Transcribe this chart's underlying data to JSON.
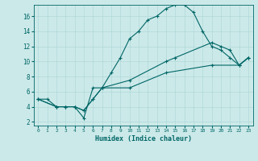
{
  "xlabel": "Humidex (Indice chaleur)",
  "bg_color": "#cce9e9",
  "line_color": "#006666",
  "grid_color": "#b0d8d8",
  "xlim": [
    -0.5,
    23.5
  ],
  "ylim": [
    1.5,
    17.5
  ],
  "xticks": [
    0,
    1,
    2,
    3,
    4,
    5,
    6,
    7,
    8,
    9,
    10,
    11,
    12,
    13,
    14,
    15,
    16,
    17,
    18,
    19,
    20,
    21,
    22,
    23
  ],
  "yticks": [
    2,
    4,
    6,
    8,
    10,
    12,
    14,
    16
  ],
  "line1_x": [
    0,
    1,
    2,
    3,
    4,
    5,
    6,
    7,
    8,
    9,
    10,
    11,
    12,
    13,
    14,
    15,
    16,
    17,
    18,
    19,
    20,
    21,
    22,
    23
  ],
  "line1_y": [
    5,
    5,
    4,
    4,
    4,
    2.5,
    6.5,
    6.5,
    8.5,
    10.5,
    13,
    14,
    15.5,
    16,
    17,
    17.5,
    17.5,
    16.5,
    14,
    12,
    11.5,
    10.5,
    9.5,
    10.5
  ],
  "line2_x": [
    0,
    2,
    3,
    4,
    5,
    6,
    7,
    10,
    14,
    15,
    19,
    20,
    21,
    22,
    23
  ],
  "line2_y": [
    5,
    4,
    4,
    4,
    3.5,
    5,
    6.5,
    7.5,
    10,
    10.5,
    12.5,
    12,
    11.5,
    9.5,
    10.5
  ],
  "line3_x": [
    0,
    2,
    3,
    4,
    5,
    6,
    7,
    10,
    14,
    19,
    22,
    23
  ],
  "line3_y": [
    5,
    4,
    4,
    4,
    3.5,
    5,
    6.5,
    6.5,
    8.5,
    9.5,
    9.5,
    10.5
  ]
}
